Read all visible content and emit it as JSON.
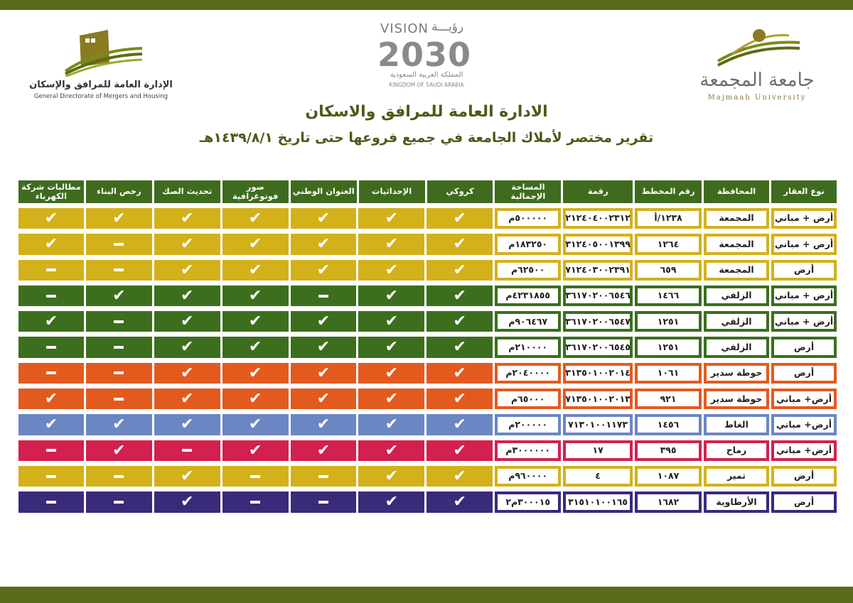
{
  "colors": {
    "band": "#5a6b1a",
    "header": "#3f6b1f",
    "row_yellow": "#d3b11a",
    "row_green": "#3c6e1e",
    "row_orange": "#e35a1f",
    "row_blue": "#6b86c2",
    "row_red": "#d3204e",
    "row_purple": "#3a2a7a",
    "title": "#4d5a17"
  },
  "logos": {
    "left_ar": "الإدارة العامة للمرافق والإسكان",
    "left_en": "General Directorate of Mergers and Housing",
    "vision_en": "VISION",
    "vision_ar": "رؤيـــة",
    "vision_year": "2030",
    "kingdom_ar": "المملكة العربية السعودية",
    "kingdom_en": "KINGDOM OF SAUDI ARABIA",
    "uni_ar": "جامعة المجمعة",
    "uni_en": "Majmaah University"
  },
  "title": "الادارة العامة للمرافق والاسكان",
  "subtitle": "تقرير مختصر لأملاك الجامعة في جميع فروعها حتى تاريخ  ١٤٣٩/٨/١هـ",
  "headers": [
    "نوع العقار",
    "المحافظة",
    "رقم المخطط",
    "رقمة",
    "المساحة الإجمالية",
    "كروكي",
    "الإحداثيات",
    "العنوان الوطني",
    "صور فوتوغرافية",
    "تحديث الصك",
    "رخص البناء",
    "مطالبات شركة الكهرباء"
  ],
  "rows": [
    {
      "color": "#d3b11a",
      "type": "أرض + مباني",
      "gov": "المجمعة",
      "plan": "١٢٣٨/أ",
      "num": "٢١٢٤٠٤٠٠٢٣١٢",
      "area": "٥٠٠٠٠٠م",
      "marks": [
        "tick",
        "tick",
        "tick",
        "tick",
        "tick",
        "tick",
        "tick"
      ]
    },
    {
      "color": "#d3b11a",
      "type": "أرض + مباني",
      "gov": "المجمعة",
      "plan": "١٢٦٤",
      "num": "٣١٢٤٠٥٠٠١٣٩٩",
      "area": "١٨٣٢٥٠م",
      "marks": [
        "tick",
        "tick",
        "tick",
        "tick",
        "tick",
        "dash",
        "tick"
      ]
    },
    {
      "color": "#d3b11a",
      "type": "أرض",
      "gov": "المجمعة",
      "plan": "٦٥٩",
      "num": "٧١٢٤٠٣٠٠٢٣٩١",
      "area": "٦٢٥٠٠م",
      "marks": [
        "tick",
        "tick",
        "tick",
        "tick",
        "tick",
        "dash",
        "dash"
      ]
    },
    {
      "color": "#3c6e1e",
      "type": "أرض + مباني",
      "gov": "الزلفي",
      "plan": "١٤٦٦",
      "num": "٣٦١٧٠٢٠٠٦٥٤٦",
      "area": "٤٢٣١٨٥٥م",
      "marks": [
        "tick",
        "tick",
        "dash",
        "tick",
        "tick",
        "tick",
        "dash"
      ]
    },
    {
      "color": "#3c6e1e",
      "type": "أرض + مباني",
      "gov": "الزلفي",
      "plan": "١٢٥١",
      "num": "٣٦١٧٠٢٠٠٦٥٤٧",
      "area": "٩٠٦٤٦٧م",
      "marks": [
        "tick",
        "tick",
        "tick",
        "tick",
        "tick",
        "dash",
        "tick"
      ]
    },
    {
      "color": "#3c6e1e",
      "type": "أرض",
      "gov": "الزلفي",
      "plan": "١٢٥١",
      "num": "٣٦١٧٠٢٠٠٦٥٤٥",
      "area": "٢١٠٠٠٠م",
      "marks": [
        "tick",
        "tick",
        "tick",
        "tick",
        "tick",
        "dash",
        "dash"
      ]
    },
    {
      "color": "#e35a1f",
      "type": "أرض",
      "gov": "حوطة سدير",
      "plan": "١٠٦١",
      "num": "٣١٣٥٠١٠٠٢٠١٤",
      "area": "٢٠٤٠٠٠٠م",
      "marks": [
        "tick",
        "tick",
        "tick",
        "tick",
        "tick",
        "dash",
        "dash"
      ]
    },
    {
      "color": "#e35a1f",
      "type": "أرض+ مباني",
      "gov": "حوطة سدير",
      "plan": "٩٢١",
      "num": "٧١٣٥٠١٠٠٢٠١٣",
      "area": "٦٥٠٠٠م",
      "marks": [
        "tick",
        "tick",
        "tick",
        "tick",
        "tick",
        "dash",
        "tick"
      ]
    },
    {
      "color": "#6b86c2",
      "type": "أرض+ مباني",
      "gov": "الغاط",
      "plan": "١٤٥٦",
      "num": "٧١٣٠١٠٠١١٧٣",
      "area": "٢٠٠٠٠٠م",
      "marks": [
        "tick",
        "tick",
        "tick",
        "tick",
        "tick",
        "tick",
        "tick"
      ]
    },
    {
      "color": "#d3204e",
      "type": "أرض+ مباني",
      "gov": "رماح",
      "plan": "٣٩٥",
      "num": "١٧",
      "area": "٣٠٠٠٠٠٠م",
      "marks": [
        "tick",
        "tick",
        "tick",
        "tick",
        "dash",
        "tick",
        "dash"
      ]
    },
    {
      "color": "#d3b11a",
      "type": "أرض",
      "gov": "تمير",
      "plan": "١٠٨٧",
      "num": "٤",
      "area": "٩٦٠٠٠٠م",
      "marks": [
        "tick",
        "tick",
        "dash",
        "dash",
        "tick",
        "dash",
        "dash"
      ]
    },
    {
      "color": "#3a2a7a",
      "type": "أرض",
      "gov": "الأرطاوية",
      "plan": "١٦٨٢",
      "num": "٣١٥١٠١٠٠١٦٥",
      "area": "٣٠٠٠١٥م٢",
      "marks": [
        "tick",
        "tick",
        "dash",
        "dash",
        "tick",
        "dash",
        "dash"
      ]
    }
  ]
}
